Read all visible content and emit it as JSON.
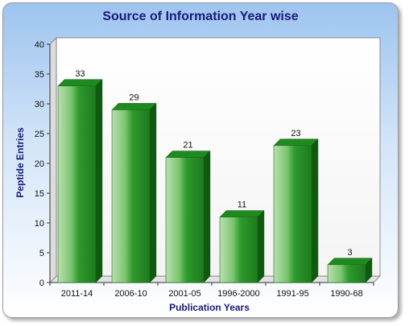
{
  "chart_data": {
    "type": "bar",
    "title": "Source of Information Year wise",
    "xlabel": "Publication Years",
    "ylabel": "Peptide Entries",
    "categories": [
      "2011-14",
      "2006-10",
      "2001-05",
      "1996-2000",
      "1991-95",
      "1990-68"
    ],
    "values": [
      33,
      29,
      21,
      11,
      23,
      3
    ],
    "ylim": [
      0,
      40
    ],
    "yticks": [
      0,
      5,
      10,
      15,
      20,
      25,
      30,
      35,
      40
    ],
    "grid": false,
    "legend": "none",
    "colors": {
      "bar_light": "#a9d8a0",
      "bar_mid": "#2f9e2f",
      "bar_dark": "#0f5a0f",
      "bar_top": "#1f8a1f"
    }
  }
}
